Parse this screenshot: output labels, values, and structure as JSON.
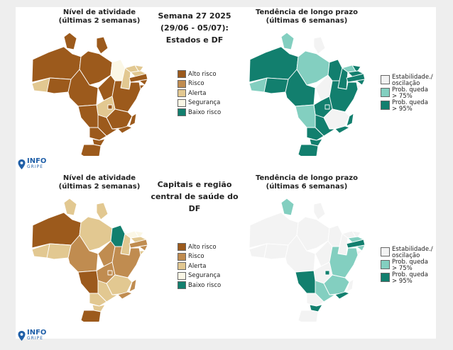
{
  "colors": {
    "alto": "#9c5a1c",
    "risco": "#c08c50",
    "alerta": "#e2c891",
    "seguranca": "#fbf7e6",
    "baixo": "#127f6e",
    "estab": "#f3f3f3",
    "q75": "#83cfc0",
    "q95": "#127f6e",
    "border": "#ffffff",
    "logo": "#1f5fa8"
  },
  "titles": {
    "nivel": "Nível de atividade\n(últimas 2 semanas)",
    "tendencia": "Tendência de longo prazo\n(últimas 6 semanas)",
    "top_center": "Semana 27 2025\n(29/06 - 05/07):\nEstados e DF",
    "bottom_center": "Capitais e região\ncentral de saúde do DF"
  },
  "legend_nivel": [
    {
      "label": "Alto risco",
      "color": "alto"
    },
    {
      "label": "Risco",
      "color": "risco"
    },
    {
      "label": "Alerta",
      "color": "alerta"
    },
    {
      "label": "Segurança",
      "color": "seguranca"
    },
    {
      "label": "Baixo risco",
      "color": "baixo"
    }
  ],
  "legend_tendencia": [
    {
      "label": "Estabilidade./\noscilação",
      "color": "estab"
    },
    {
      "label": "Prob. queda\n> 75%",
      "color": "q75"
    },
    {
      "label": "Prob. queda\n> 95%",
      "color": "q95"
    }
  ],
  "logo": {
    "title": "INFO",
    "subtitle": "GRIPE",
    "icon": "location-pin-icon"
  },
  "maps": {
    "top_nivel": [
      "alerta",
      "alto",
      "alto",
      "alto",
      "alto",
      "alto",
      "alto",
      "alto",
      "seguranca",
      "alerta",
      "alerta",
      "alerta",
      "alerta",
      "alto",
      "alto",
      "alto",
      "alto",
      "alerta",
      "alto",
      "alto",
      "alto",
      "alto",
      "alto",
      "alto",
      "alto",
      "alto",
      "alto"
    ],
    "top_tendencia": [
      "q75",
      "q95",
      "q75",
      "q75",
      "estab",
      "q95",
      "q95",
      "estab",
      "q95",
      "q95",
      "q75",
      "q95",
      "q95",
      "q95",
      "q95",
      "estab",
      "q95",
      "q95",
      "q95",
      "estab",
      "q95",
      "q95",
      "q95",
      "q75",
      "q95",
      "q95",
      "q95"
    ],
    "bottom_nivel": [
      "alerta",
      "alto",
      "alerta",
      "alerta",
      "alerta",
      "alerta",
      "risco",
      "risco",
      "baixo",
      "alerta",
      "seguranca",
      "seguranca",
      "alerta",
      "risco",
      "risco",
      "alerta",
      "risco",
      "risco",
      "risco",
      "alerta",
      "risco",
      "risco",
      "alerta",
      "alto",
      "alerta",
      "alerta",
      "alto"
    ],
    "bottom_tendencia": [
      "estab",
      "estab",
      "q75",
      "estab",
      "estab",
      "estab",
      "estab",
      "estab",
      "estab",
      "estab",
      "estab",
      "estab",
      "q75",
      "q95",
      "q75",
      "estab",
      "q75",
      "estab",
      "q95",
      "q75",
      "estab",
      "q95",
      "q75",
      "q95",
      "estab",
      "q95",
      "estab"
    ]
  }
}
